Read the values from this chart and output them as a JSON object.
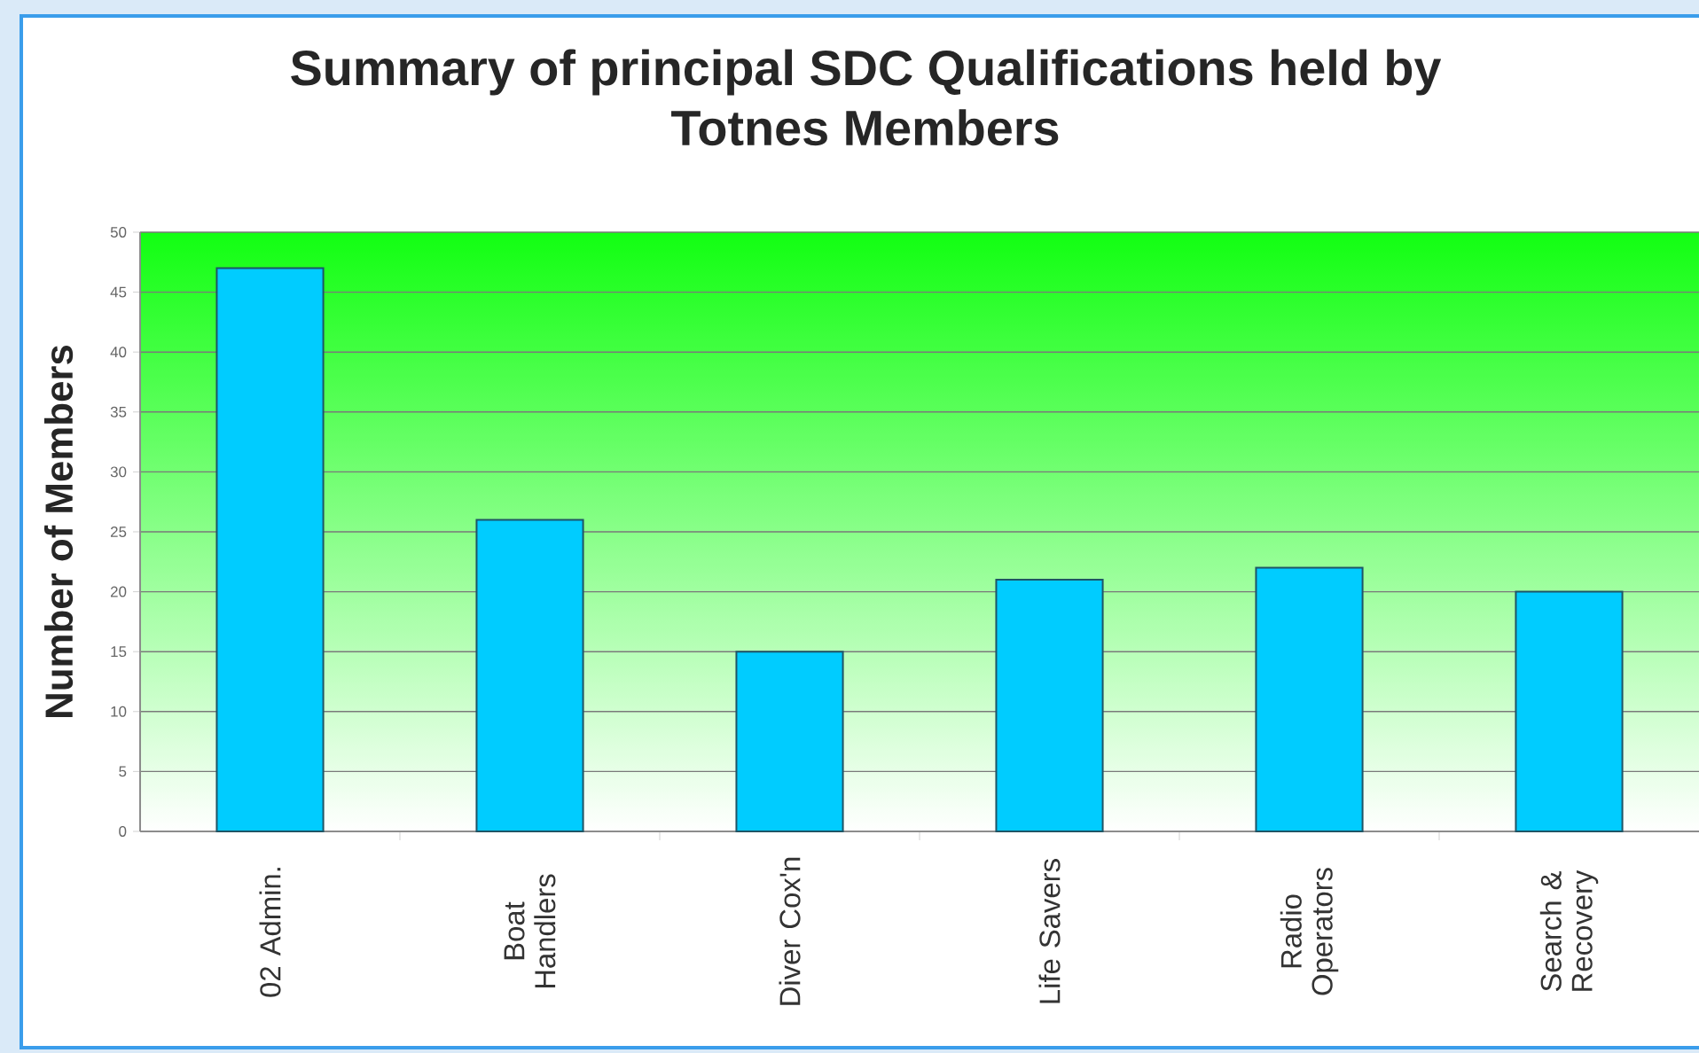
{
  "chart_data": {
    "type": "bar",
    "title": "Summary of principal SDC Qualifications held by Totnes Members",
    "ylabel": "Number of Members",
    "categories": [
      "02 Admin.",
      "Boat Handlers",
      "Diver Cox'n",
      "Life Savers",
      "Radio Operators",
      "Search & Recovery"
    ],
    "values": [
      47,
      26,
      15,
      21,
      22,
      20
    ],
    "color": "#00ccff",
    "ylim": [
      0,
      50
    ],
    "yticks": [
      0,
      5,
      10,
      15,
      20,
      25,
      30,
      35,
      40,
      45,
      50
    ],
    "grid": "y"
  }
}
